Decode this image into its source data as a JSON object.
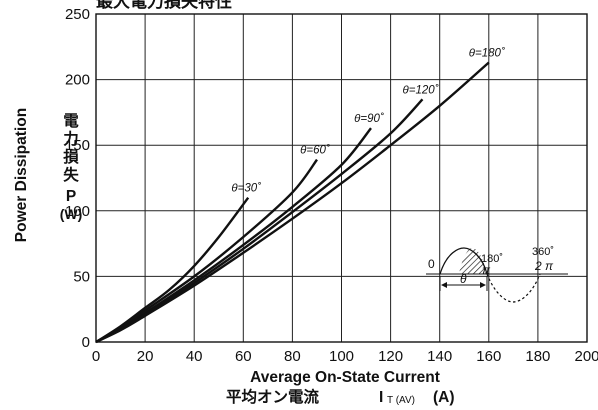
{
  "chart_data": {
    "type": "line",
    "title": "最大電力損失特性",
    "xlabel": "Average On-State Current",
    "xlabel_jp": "平均オン電流",
    "xlabel_symbol": "I",
    "xlabel_subscript": "T (AV)",
    "xlabel_unit": "(A)",
    "ylabel": "Power Dissipation",
    "ylabel_jp": [
      "電",
      "力",
      "損",
      "失"
    ],
    "ylabel_symbol": "P",
    "ylabel_unit": "(W)",
    "xlim": [
      0,
      200
    ],
    "ylim": [
      0,
      250
    ],
    "x_ticks": [
      "0",
      "20",
      "40",
      "60",
      "80",
      "100",
      "120",
      "140",
      "160",
      "180",
      "200"
    ],
    "y_ticks": [
      "0",
      "50",
      "100",
      "150",
      "200",
      "250"
    ],
    "grid": true,
    "series": [
      {
        "name": "θ=30˚",
        "x": [
          0,
          10,
          20,
          30,
          40,
          50,
          62
        ],
        "y": [
          0,
          12,
          26,
          40,
          58,
          80,
          110
        ]
      },
      {
        "name": "θ=60˚",
        "x": [
          0,
          10,
          20,
          40,
          60,
          80,
          90
        ],
        "y": [
          0,
          11,
          24,
          50,
          80,
          114,
          139
        ]
      },
      {
        "name": "θ=90˚",
        "x": [
          0,
          10,
          20,
          40,
          60,
          80,
          100,
          112
        ],
        "y": [
          0,
          10,
          22,
          47,
          74,
          103,
          135,
          163
        ]
      },
      {
        "name": "θ=120˚",
        "x": [
          0,
          10,
          20,
          40,
          60,
          80,
          100,
          120,
          133
        ],
        "y": [
          0,
          9.5,
          21,
          45,
          71,
          99,
          128,
          159,
          185
        ]
      },
      {
        "name": "θ=180˚",
        "x": [
          0,
          10,
          20,
          40,
          60,
          80,
          100,
          120,
          140,
          160
        ],
        "y": [
          0,
          9,
          20,
          43,
          68,
          94,
          121,
          150,
          180,
          213
        ]
      }
    ],
    "inset": {
      "label_0": "0",
      "label_180": "180˚",
      "label_pi": "π",
      "label_360": "360˚",
      "label_2pi": "2 π",
      "label_theta": "θ"
    }
  }
}
